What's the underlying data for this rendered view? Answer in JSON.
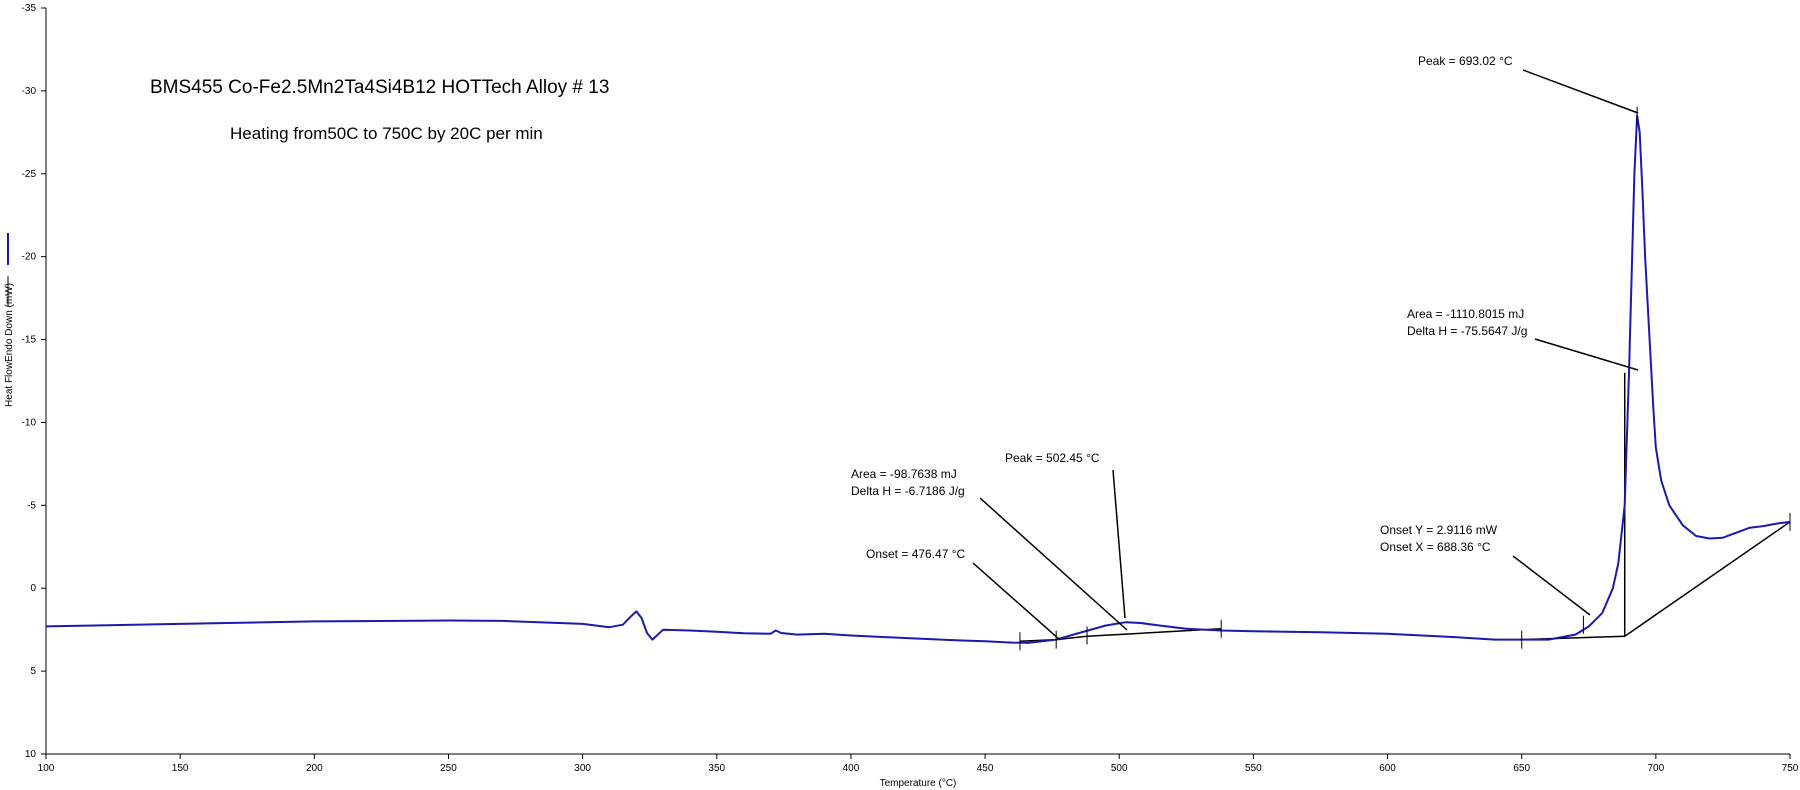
{
  "chart_data": {
    "type": "line",
    "title": "BMS455 Co-Fe2.5Mn2Ta4Si4B12 HOTTech Alloy # 13",
    "subtitle": "Heating from50C to 750C by 20C per min",
    "xlabel": "Temperature (°C)",
    "ylabel": "Heat FlowEndo Down (mW)",
    "xlim": [
      100,
      750
    ],
    "ylim": [
      10,
      -35
    ],
    "y_inverted": true,
    "x_ticks": [
      "100",
      "150",
      "200",
      "250",
      "300",
      "350",
      "400",
      "450",
      "500",
      "550",
      "600",
      "650",
      "700",
      "750"
    ],
    "x_tick_values": [
      100,
      150,
      200,
      250,
      300,
      350,
      400,
      450,
      500,
      550,
      600,
      650,
      700,
      750
    ],
    "y_ticks": [
      "10",
      "5",
      "0",
      "-5",
      "-10",
      "-15",
      "-20",
      "-25",
      "-30",
      "-35"
    ],
    "y_tick_values": [
      10,
      5,
      0,
      -5,
      -10,
      -15,
      -20,
      -25,
      -30,
      -35
    ],
    "series": [
      {
        "color": "#1a1ab0",
        "x": [
          100,
          150,
          200,
          250,
          270,
          300,
          310,
          315,
          318,
          320,
          322,
          324,
          326,
          330,
          340,
          350,
          360,
          370,
          372,
          374,
          380,
          390,
          400,
          420,
          440,
          450,
          460,
          466,
          476.5,
          485,
          495,
          502.45,
          508,
          515,
          525,
          538,
          550,
          575,
          600,
          625,
          640,
          650,
          660,
          670,
          675,
          680,
          684,
          686,
          688.4,
          689,
          690,
          691,
          692,
          693.02,
          694,
          695,
          696,
          697,
          698,
          699,
          700,
          702,
          705,
          710,
          715,
          720,
          725,
          730,
          735,
          740,
          745,
          750
        ],
        "y": [
          2.3,
          2.15,
          2.0,
          1.95,
          1.97,
          2.15,
          2.35,
          2.2,
          1.7,
          1.4,
          1.8,
          2.7,
          3.1,
          2.5,
          2.55,
          2.62,
          2.72,
          2.75,
          2.55,
          2.7,
          2.8,
          2.75,
          2.85,
          3.0,
          3.15,
          3.2,
          3.28,
          3.3,
          3.1,
          2.7,
          2.25,
          2.05,
          2.1,
          2.25,
          2.45,
          2.55,
          2.6,
          2.65,
          2.75,
          2.95,
          3.1,
          3.1,
          3.1,
          2.8,
          2.3,
          1.5,
          0.0,
          -1.5,
          -5.0,
          -8.0,
          -13.0,
          -19.0,
          -25.0,
          -28.5,
          -27.5,
          -24.0,
          -20.0,
          -17.0,
          -14.0,
          -11.0,
          -8.5,
          -6.5,
          -5.0,
          -3.8,
          -3.15,
          -3.0,
          -3.05,
          -3.35,
          -3.65,
          -3.75,
          -3.9,
          -4.0
        ]
      }
    ],
    "baselines": [
      {
        "x": [
          463,
          476.5,
          488,
          538
        ],
        "y": [
          3.2,
          3.1,
          2.9,
          2.45
        ]
      },
      {
        "x": [
          650,
          688.4,
          750
        ],
        "y": [
          3.1,
          2.9,
          -4.0
        ]
      }
    ],
    "markers": [
      {
        "x": 463,
        "y": 3.2
      },
      {
        "x": 476.5,
        "y": 3.1
      },
      {
        "x": 488,
        "y": 2.85
      },
      {
        "x": 538,
        "y": 2.45
      },
      {
        "x": 650,
        "y": 3.1
      },
      {
        "x": 673,
        "y": 2.2
      },
      {
        "x": 693.02,
        "y": -28.5
      },
      {
        "x": 750,
        "y": -4.0
      }
    ],
    "annotations": [
      {
        "lines": [
          "Peak = 693.02 °C"
        ]
      },
      {
        "lines": [
          "Area = -1110.8015 mJ",
          "Delta H = -75.5647 J/g"
        ]
      },
      {
        "lines": [
          "Onset Y = 2.9116 mW",
          "Onset X = 688.36 °C"
        ]
      },
      {
        "lines": [
          "Peak = 502.45 °C"
        ]
      },
      {
        "lines": [
          "Area = -98.7638 mJ",
          "Delta H = -6.7186 J/g"
        ]
      },
      {
        "lines": [
          "Onset = 476.47 °C"
        ]
      }
    ],
    "grid": false,
    "legend": "left"
  }
}
